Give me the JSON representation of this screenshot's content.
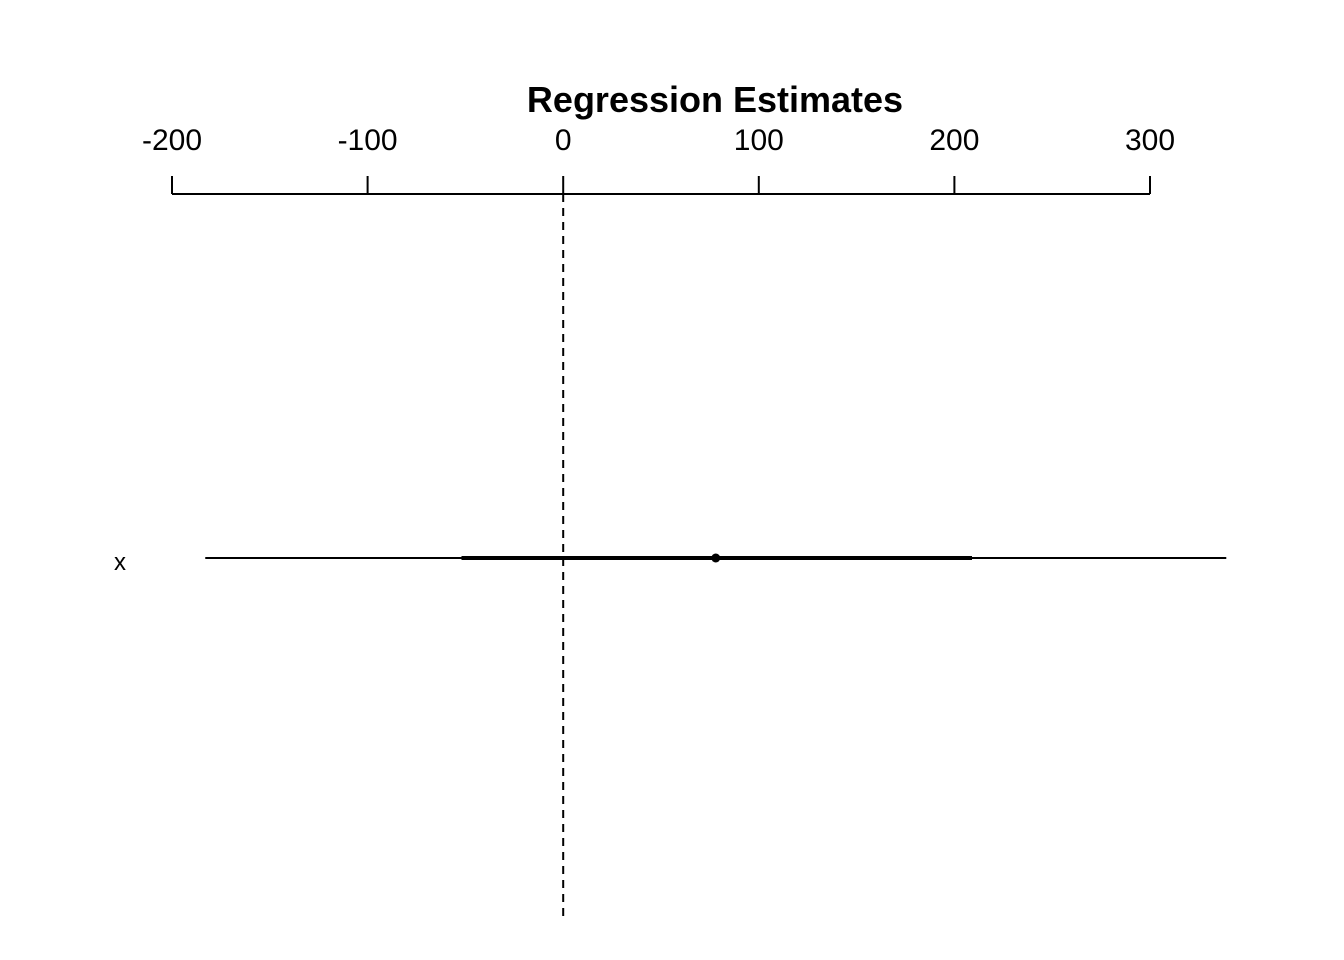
{
  "chart_data": {
    "type": "coefficient-plot",
    "title": "Regression Estimates",
    "xlabel": "",
    "ylabel": "",
    "axis_position": "top",
    "xlim": [
      -200,
      300
    ],
    "ticks": [
      -200,
      -100,
      0,
      100,
      200,
      300
    ],
    "tick_labels": [
      "-200",
      "-100",
      "0",
      "100",
      "200",
      "300"
    ],
    "reference_line": {
      "x": 0,
      "style": "dashed"
    },
    "coefficients": [
      {
        "label": "x",
        "estimate": 78,
        "ci_inner": [
          -52,
          209
        ],
        "ci_outer": [
          -183,
          339
        ]
      }
    ],
    "grid": false,
    "legend": "none"
  }
}
